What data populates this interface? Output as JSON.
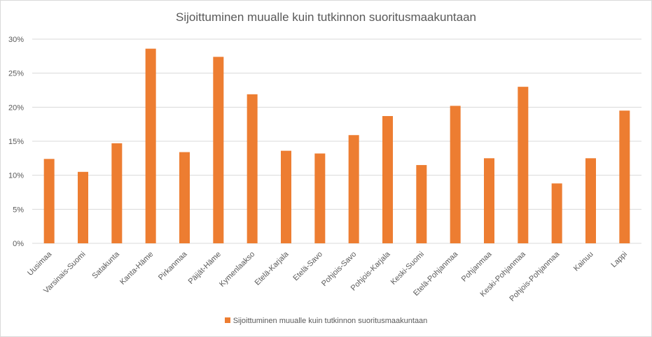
{
  "chart_data": {
    "type": "bar",
    "title": "Sijoittuminen muualle kuin tutkinnon suoritusmaakuntaan",
    "xlabel": "",
    "ylabel": "",
    "categories": [
      "Uusimaa",
      "Varsinais-Suomi",
      "Satakunta",
      "Kanta-Häme",
      "Pirkanmaa",
      "Päijät-Häme",
      "Kymenlaakso",
      "Etelä-Karjala",
      "Etelä-Savo",
      "Pohjois-Savo",
      "Pohjois-Karjala",
      "Keski-Suomi",
      "Etelä-Pohjanmaa",
      "Pohjanmaa",
      "Keski-Pohjanmaa",
      "Pohjois-Pohjanmaa",
      "Kainuu",
      "Lappi"
    ],
    "series": [
      {
        "name": "Sijoittuminen muualle kuin tutkinnon suoritusmaakuntaan",
        "values": [
          12.4,
          10.5,
          14.7,
          28.6,
          13.4,
          27.4,
          21.9,
          13.6,
          13.2,
          15.9,
          18.7,
          11.5,
          20.2,
          12.5,
          23.0,
          8.8,
          12.5,
          19.5
        ],
        "color": "#ED7D31"
      }
    ],
    "ylim": [
      0,
      30
    ],
    "yticks": [
      "0%",
      "5%",
      "10%",
      "15%",
      "20%",
      "25%",
      "30%"
    ],
    "grid": true,
    "legend_position": "bottom",
    "gridline_color": "#d9d9d9"
  }
}
